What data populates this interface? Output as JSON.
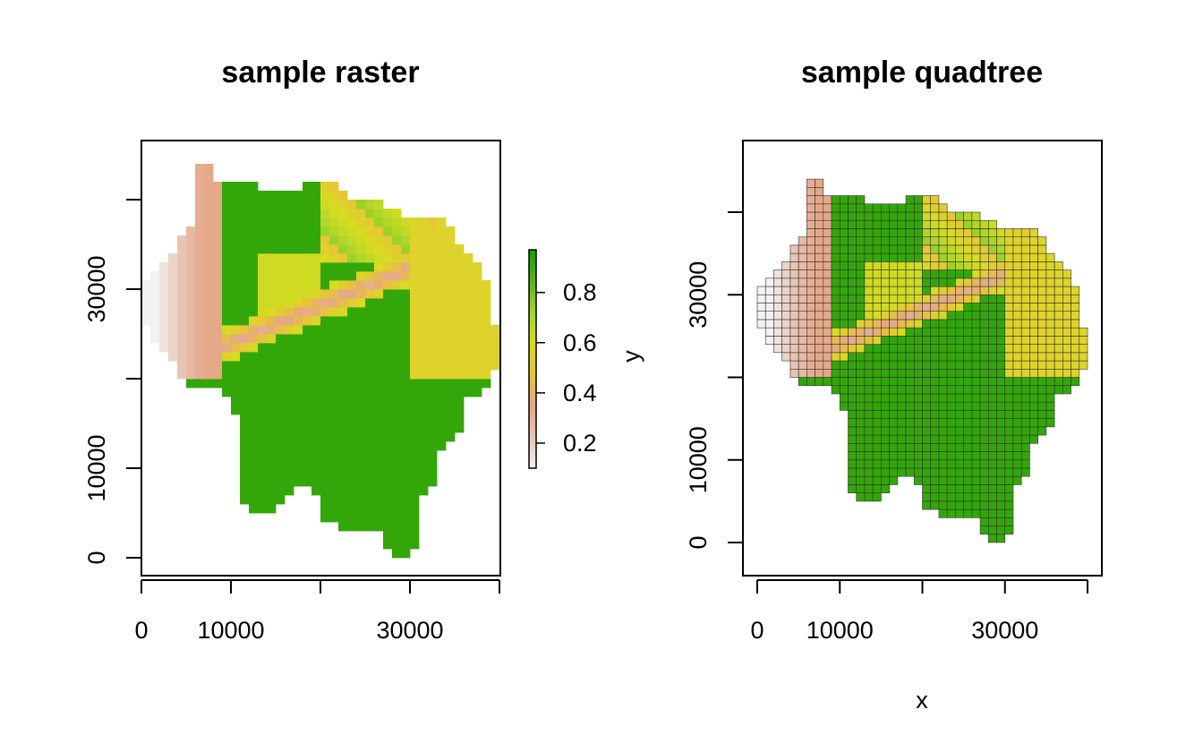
{
  "chart_data": [
    {
      "type": "heatmap",
      "title": "sample raster",
      "xlabel": "",
      "ylabel": "",
      "xlim": [
        0,
        40000
      ],
      "ylim": [
        0,
        40000
      ],
      "x_ticks": [
        0,
        10000,
        20000,
        30000,
        40000
      ],
      "x_tick_labels": [
        "0",
        "10000",
        "",
        "30000",
        ""
      ],
      "y_ticks": [
        0,
        10000,
        20000,
        30000,
        40000
      ],
      "y_tick_labels": [
        "0",
        "10000",
        "",
        "30000",
        ""
      ],
      "legend": {
        "label": "y",
        "range": [
          0.1,
          0.97
        ],
        "ticks": [
          0.2,
          0.4,
          0.6,
          0.8
        ],
        "tick_labels": [
          "0.2",
          "0.4",
          "0.6",
          "0.8"
        ],
        "colors": [
          "#f2f2f2",
          "#e8c7b8",
          "#e5a88a",
          "#e8c33a",
          "#d8dc20",
          "#a7d62a",
          "#5cb219",
          "#18a000"
        ]
      },
      "grid": false
    },
    {
      "type": "heatmap",
      "title": "sample quadtree",
      "xlabel": "x",
      "ylabel": "",
      "xlim": [
        0,
        40000
      ],
      "ylim": [
        0,
        40000
      ],
      "x_ticks": [
        0,
        10000,
        20000,
        30000,
        40000
      ],
      "x_tick_labels": [
        "0",
        "10000",
        "",
        "30000",
        ""
      ],
      "y_ticks": [
        0,
        10000,
        20000,
        30000,
        40000
      ],
      "y_tick_labels": [
        "0",
        "10000",
        "",
        "30000",
        ""
      ],
      "cell_border_color": "#333333",
      "grid": false
    }
  ]
}
